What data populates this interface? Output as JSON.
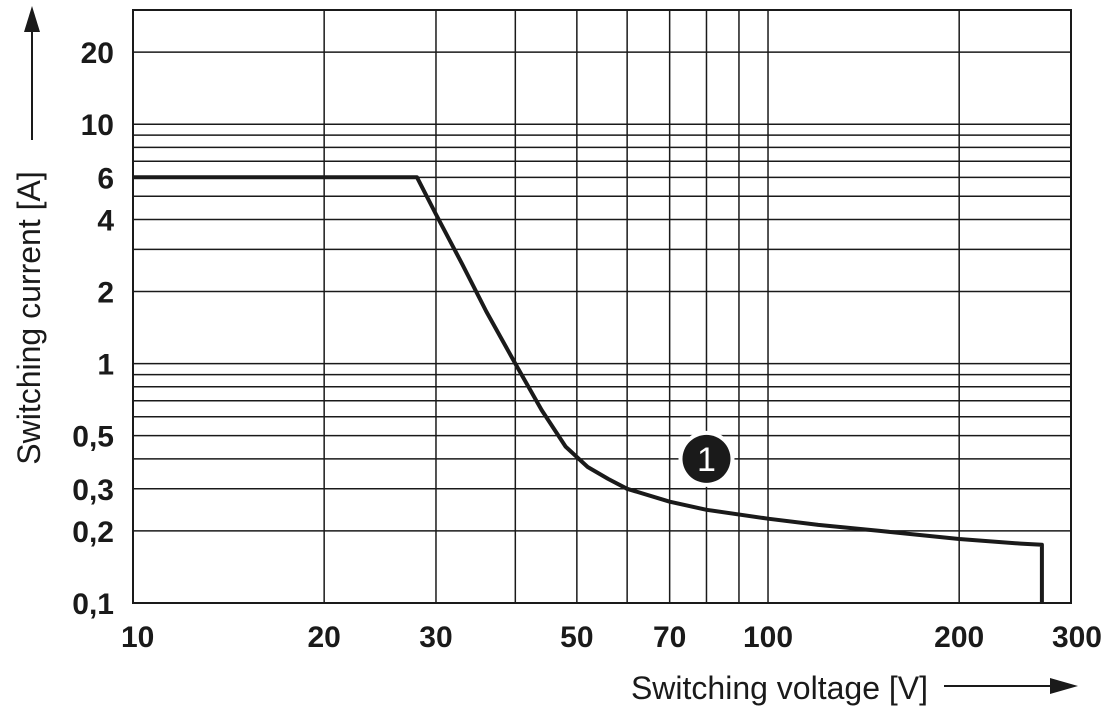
{
  "chart_data": {
    "type": "line",
    "xlabel": "Switching voltage [V]",
    "ylabel": "Switching current [A]",
    "xscale": "log",
    "yscale": "log",
    "xlim": [
      10,
      300
    ],
    "ylim": [
      0.1,
      30
    ],
    "grid": true,
    "x_ticks": [
      {
        "value": 10,
        "label": "10"
      },
      {
        "value": 20,
        "label": "20"
      },
      {
        "value": 30,
        "label": "30"
      },
      {
        "value": 50,
        "label": "50"
      },
      {
        "value": 70,
        "label": "70"
      },
      {
        "value": 100,
        "label": "100"
      },
      {
        "value": 200,
        "label": "200"
      },
      {
        "value": 300,
        "label": "300"
      }
    ],
    "x_grid": [
      20,
      30,
      40,
      50,
      60,
      70,
      80,
      90,
      100,
      200
    ],
    "y_ticks": [
      {
        "value": 0.1,
        "label": "0,1"
      },
      {
        "value": 0.2,
        "label": "0,2"
      },
      {
        "value": 0.3,
        "label": "0,3"
      },
      {
        "value": 0.5,
        "label": "0,5"
      },
      {
        "value": 1,
        "label": "1"
      },
      {
        "value": 2,
        "label": "2"
      },
      {
        "value": 4,
        "label": "4"
      },
      {
        "value": 6,
        "label": "6"
      },
      {
        "value": 10,
        "label": "10"
      },
      {
        "value": 20,
        "label": "20"
      }
    ],
    "y_grid": [
      0.2,
      0.3,
      0.4,
      0.5,
      0.6,
      0.7,
      0.8,
      0.9,
      1,
      2,
      3,
      4,
      5,
      6,
      7,
      8,
      9,
      10,
      20
    ],
    "series": [
      {
        "x": [
          10,
          28,
          30,
          33,
          36,
          40,
          44,
          48,
          52,
          56,
          60,
          70,
          80,
          100,
          120,
          150,
          200,
          250,
          270,
          270
        ],
        "y": [
          6,
          6,
          4.2,
          2.6,
          1.65,
          1.0,
          0.64,
          0.45,
          0.37,
          0.33,
          0.3,
          0.265,
          0.245,
          0.225,
          0.212,
          0.2,
          0.185,
          0.177,
          0.175,
          0.1
        ]
      }
    ],
    "annotations": [
      {
        "text": "1",
        "x": 80,
        "y": 0.4,
        "style": "filled-circle"
      }
    ]
  }
}
